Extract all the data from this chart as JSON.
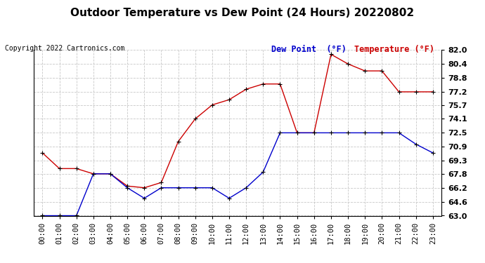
{
  "title": "Outdoor Temperature vs Dew Point (24 Hours) 20220802",
  "copyright_text": "Copyright 2022 Cartronics.com",
  "legend_dew": "Dew Point  (°F)",
  "legend_temp": "Temperature (°F)",
  "x_labels": [
    "00:00",
    "01:00",
    "02:00",
    "03:00",
    "04:00",
    "05:00",
    "06:00",
    "07:00",
    "08:00",
    "09:00",
    "10:00",
    "11:00",
    "12:00",
    "13:00",
    "14:00",
    "15:00",
    "16:00",
    "17:00",
    "18:00",
    "19:00",
    "20:00",
    "21:00",
    "22:00",
    "23:00"
  ],
  "temperature": [
    70.2,
    68.4,
    68.4,
    67.8,
    67.8,
    66.4,
    66.2,
    66.8,
    71.5,
    74.1,
    75.7,
    76.3,
    77.5,
    78.1,
    78.1,
    72.5,
    72.5,
    81.5,
    80.4,
    79.6,
    79.6,
    77.2,
    77.2,
    77.2
  ],
  "dew_point": [
    63.0,
    63.0,
    63.0,
    67.8,
    67.8,
    66.2,
    65.0,
    66.2,
    66.2,
    66.2,
    66.2,
    65.0,
    66.2,
    68.0,
    72.5,
    72.5,
    72.5,
    72.5,
    72.5,
    72.5,
    72.5,
    72.5,
    71.2,
    70.2
  ],
  "temp_color": "#cc0000",
  "dew_color": "#0000cc",
  "ylim_min": 63.0,
  "ylim_max": 82.0,
  "yticks": [
    63.0,
    64.6,
    66.2,
    67.8,
    69.3,
    70.9,
    72.5,
    74.1,
    75.7,
    77.2,
    78.8,
    80.4,
    82.0
  ],
  "bg_color": "#ffffff",
  "grid_color": "#c8c8c8",
  "title_fontsize": 11,
  "copyright_fontsize": 7,
  "legend_fontsize": 8.5,
  "tick_fontsize": 7.5,
  "ytick_fontsize": 8
}
